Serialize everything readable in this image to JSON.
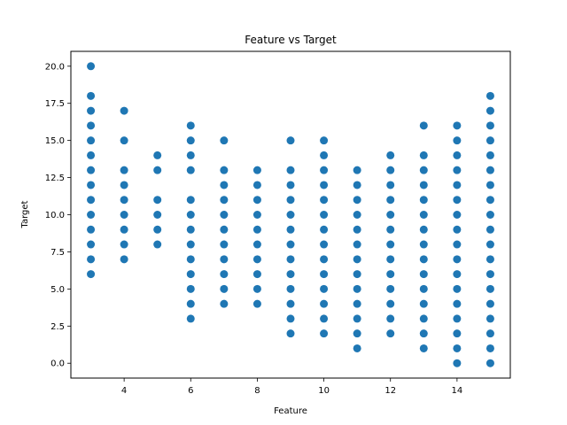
{
  "chart_data": {
    "type": "scatter",
    "title": "Feature vs Target",
    "xlabel": "Feature",
    "ylabel": "Target",
    "xlim": [
      2.4,
      15.6
    ],
    "ylim": [
      -1.0,
      21.0
    ],
    "xticks": [
      4,
      6,
      8,
      10,
      12,
      14
    ],
    "xtick_labels": [
      "4",
      "6",
      "8",
      "10",
      "12",
      "14"
    ],
    "yticks": [
      0.0,
      2.5,
      5.0,
      7.5,
      10.0,
      12.5,
      15.0,
      17.5,
      20.0
    ],
    "ytick_labels": [
      "0.0",
      "2.5",
      "5.0",
      "7.5",
      "10.0",
      "12.5",
      "15.0",
      "17.5",
      "20.0"
    ],
    "grid": false,
    "marker_color": "#1f77b4",
    "groups": [
      {
        "x": 3,
        "y": [
          6,
          7,
          8,
          9,
          10,
          11,
          12,
          13,
          14,
          15,
          16,
          17,
          18,
          20
        ]
      },
      {
        "x": 4,
        "y": [
          7,
          8,
          9,
          10,
          11,
          12,
          13,
          15,
          17
        ]
      },
      {
        "x": 5,
        "y": [
          8,
          9,
          10,
          11,
          13,
          14
        ]
      },
      {
        "x": 6,
        "y": [
          3,
          4,
          5,
          6,
          7,
          8,
          9,
          10,
          11,
          13,
          14,
          15,
          16
        ]
      },
      {
        "x": 7,
        "y": [
          4,
          5,
          6,
          7,
          8,
          9,
          10,
          11,
          12,
          13,
          15
        ]
      },
      {
        "x": 8,
        "y": [
          4,
          5,
          6,
          7,
          8,
          9,
          10,
          11,
          12,
          13
        ]
      },
      {
        "x": 9,
        "y": [
          2,
          3,
          4,
          5,
          6,
          7,
          8,
          9,
          10,
          11,
          12,
          13,
          15
        ]
      },
      {
        "x": 10,
        "y": [
          2,
          3,
          4,
          5,
          6,
          7,
          8,
          9,
          10,
          11,
          12,
          13,
          14,
          15
        ]
      },
      {
        "x": 11,
        "y": [
          1,
          2,
          3,
          4,
          5,
          6,
          7,
          8,
          9,
          10,
          11,
          12,
          13
        ]
      },
      {
        "x": 12,
        "y": [
          2,
          3,
          4,
          5,
          6,
          7,
          8,
          9,
          10,
          11,
          12,
          13,
          14
        ]
      },
      {
        "x": 13,
        "y": [
          1,
          2,
          3,
          4,
          5,
          6,
          7,
          8,
          9,
          10,
          11,
          12,
          13,
          14,
          16
        ]
      },
      {
        "x": 14,
        "y": [
          0,
          1,
          2,
          3,
          4,
          5,
          6,
          7,
          8,
          9,
          10,
          11,
          12,
          13,
          14,
          15,
          16
        ]
      },
      {
        "x": 15,
        "y": [
          0,
          1,
          2,
          3,
          4,
          5,
          6,
          7,
          8,
          9,
          10,
          11,
          12,
          13,
          14,
          15,
          16,
          17,
          18
        ]
      }
    ]
  }
}
